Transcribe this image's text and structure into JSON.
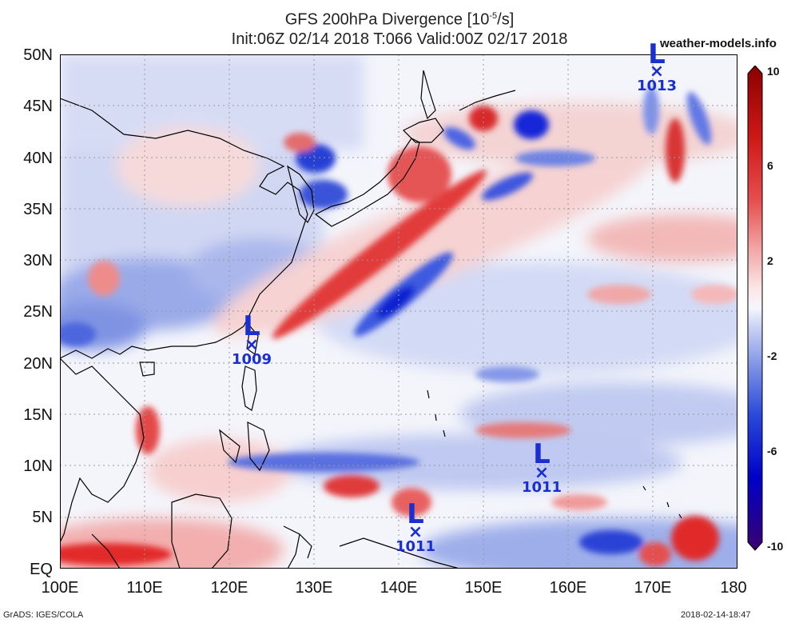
{
  "title": {
    "line1": "GFS 200hPa Divergence [10",
    "exponent": "-5",
    "line1_end": "/s]",
    "line2": "Init:06Z 02/14 2018 T:066 Valid:00Z 02/17 2018"
  },
  "site": "weather-models.info",
  "lat_labels": [
    "50N",
    "45N",
    "40N",
    "35N",
    "30N",
    "25N",
    "20N",
    "15N",
    "10N",
    "5N",
    "EQ"
  ],
  "lon_labels": [
    "100E",
    "110E",
    "120E",
    "130E",
    "140E",
    "150E",
    "160E",
    "170E",
    "180"
  ],
  "colorbar": {
    "labels": [
      "10",
      "6",
      "2",
      "-2",
      "-6",
      "-10"
    ],
    "colors": [
      "#3a0070",
      "#0000c8",
      "#2a4ad8",
      "#7f93e6",
      "#c9d2f5",
      "#f5f6fc",
      "#fbe6e6",
      "#f2a7a7",
      "#e65050",
      "#cf1818",
      "#8a0000"
    ]
  },
  "lows": [
    {
      "name": "low-1009",
      "symbol": "L",
      "marker": "×",
      "pressure": "1009"
    },
    {
      "name": "low-1013",
      "symbol": "L",
      "marker": "×",
      "pressure": "1013"
    },
    {
      "name": "low-1011-east",
      "symbol": "L",
      "marker": "×",
      "pressure": "1011"
    },
    {
      "name": "low-1011-south",
      "symbol": "L",
      "marker": "×",
      "pressure": "1011"
    }
  ],
  "footer": {
    "left": "GrADS: IGES/COLA",
    "right": "2018-02-14-18:47"
  },
  "colors": {
    "positive": "#e03030",
    "negative": "#2a40d8",
    "coast": "#000000",
    "low_marker": "#1a2fd0"
  }
}
